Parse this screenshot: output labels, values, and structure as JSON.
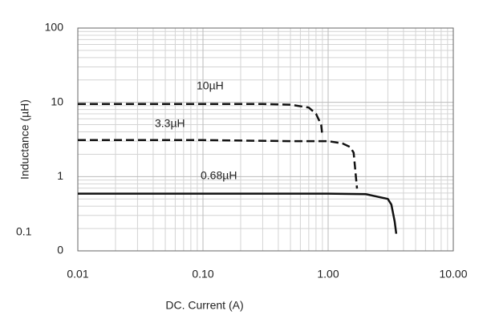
{
  "chart_data": {
    "type": "line",
    "x_label": "DC. Current (A)",
    "y_label": "Inductance (µH)",
    "xscale": "log",
    "yscale": "log",
    "grid": true,
    "minor_grid": true,
    "xlim": [
      0.01,
      10
    ],
    "ylim": [
      0.1,
      100
    ],
    "xticks": [
      0.01,
      {
        "value": 0.1,
        "label": "0.10"
      },
      {
        "value": 1,
        "label": "1.00"
      },
      {
        "value": 10,
        "label": "10.00"
      }
    ],
    "yticks": [
      {
        "value": 0.1,
        "label": "0"
      },
      1,
      10,
      100
    ],
    "annotations": [
      "0.1"
    ],
    "series": [
      {
        "name": "10µH",
        "color": "#111111",
        "linestyle": "dashed",
        "x": [
          0.01,
          0.1,
          0.3,
          0.5,
          0.7,
          0.8,
          0.88,
          0.9
        ],
        "values": [
          9.5,
          9.5,
          9.5,
          9.3,
          8.5,
          7,
          5,
          3.5
        ]
      },
      {
        "name": "3.3µH",
        "color": "#111111",
        "linestyle": "dashed",
        "x": [
          0.01,
          0.1,
          0.5,
          1.0,
          1.3,
          1.5,
          1.6,
          1.7
        ],
        "values": [
          3.1,
          3.1,
          3.0,
          3.0,
          2.8,
          2.5,
          2.1,
          0.69
        ]
      },
      {
        "name": "0.68µH",
        "color": "#111111",
        "linestyle": "solid",
        "x": [
          0.01,
          0.1,
          1,
          2,
          3,
          3.2,
          3.4,
          3.5
        ],
        "values": [
          0.59,
          0.59,
          0.59,
          0.58,
          0.5,
          0.42,
          0.25,
          0.17
        ]
      }
    ]
  }
}
